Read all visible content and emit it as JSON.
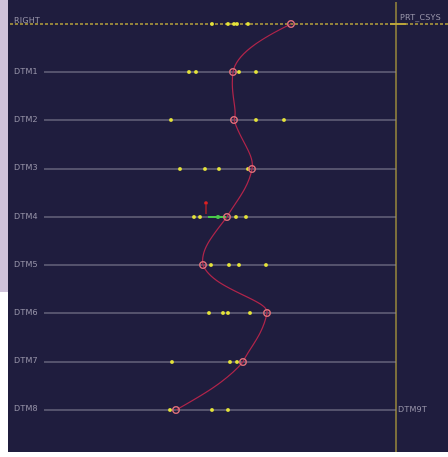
{
  "viewport": {
    "background": "#1f1d3e",
    "top_plane": "RIGHT",
    "csys_label": "PRT_CSYS",
    "side_plane": "DTM9T"
  },
  "datum_planes": [
    {
      "label": "DTM1"
    },
    {
      "label": "DTM2"
    },
    {
      "label": "DTM3"
    },
    {
      "label": "DTM4"
    },
    {
      "label": "DTM5"
    },
    {
      "label": "DTM6"
    },
    {
      "label": "DTM7"
    },
    {
      "label": "DTM8"
    }
  ],
  "colors": {
    "plane_line": "#8a8699",
    "plane_label": "#9a96ab",
    "axis": "#b9a43a",
    "curve": "#b2244a",
    "point": "#e6e53a",
    "control_point": "#e0707a",
    "active_segment": "#49c94a",
    "pick_marker": "#e02020"
  }
}
